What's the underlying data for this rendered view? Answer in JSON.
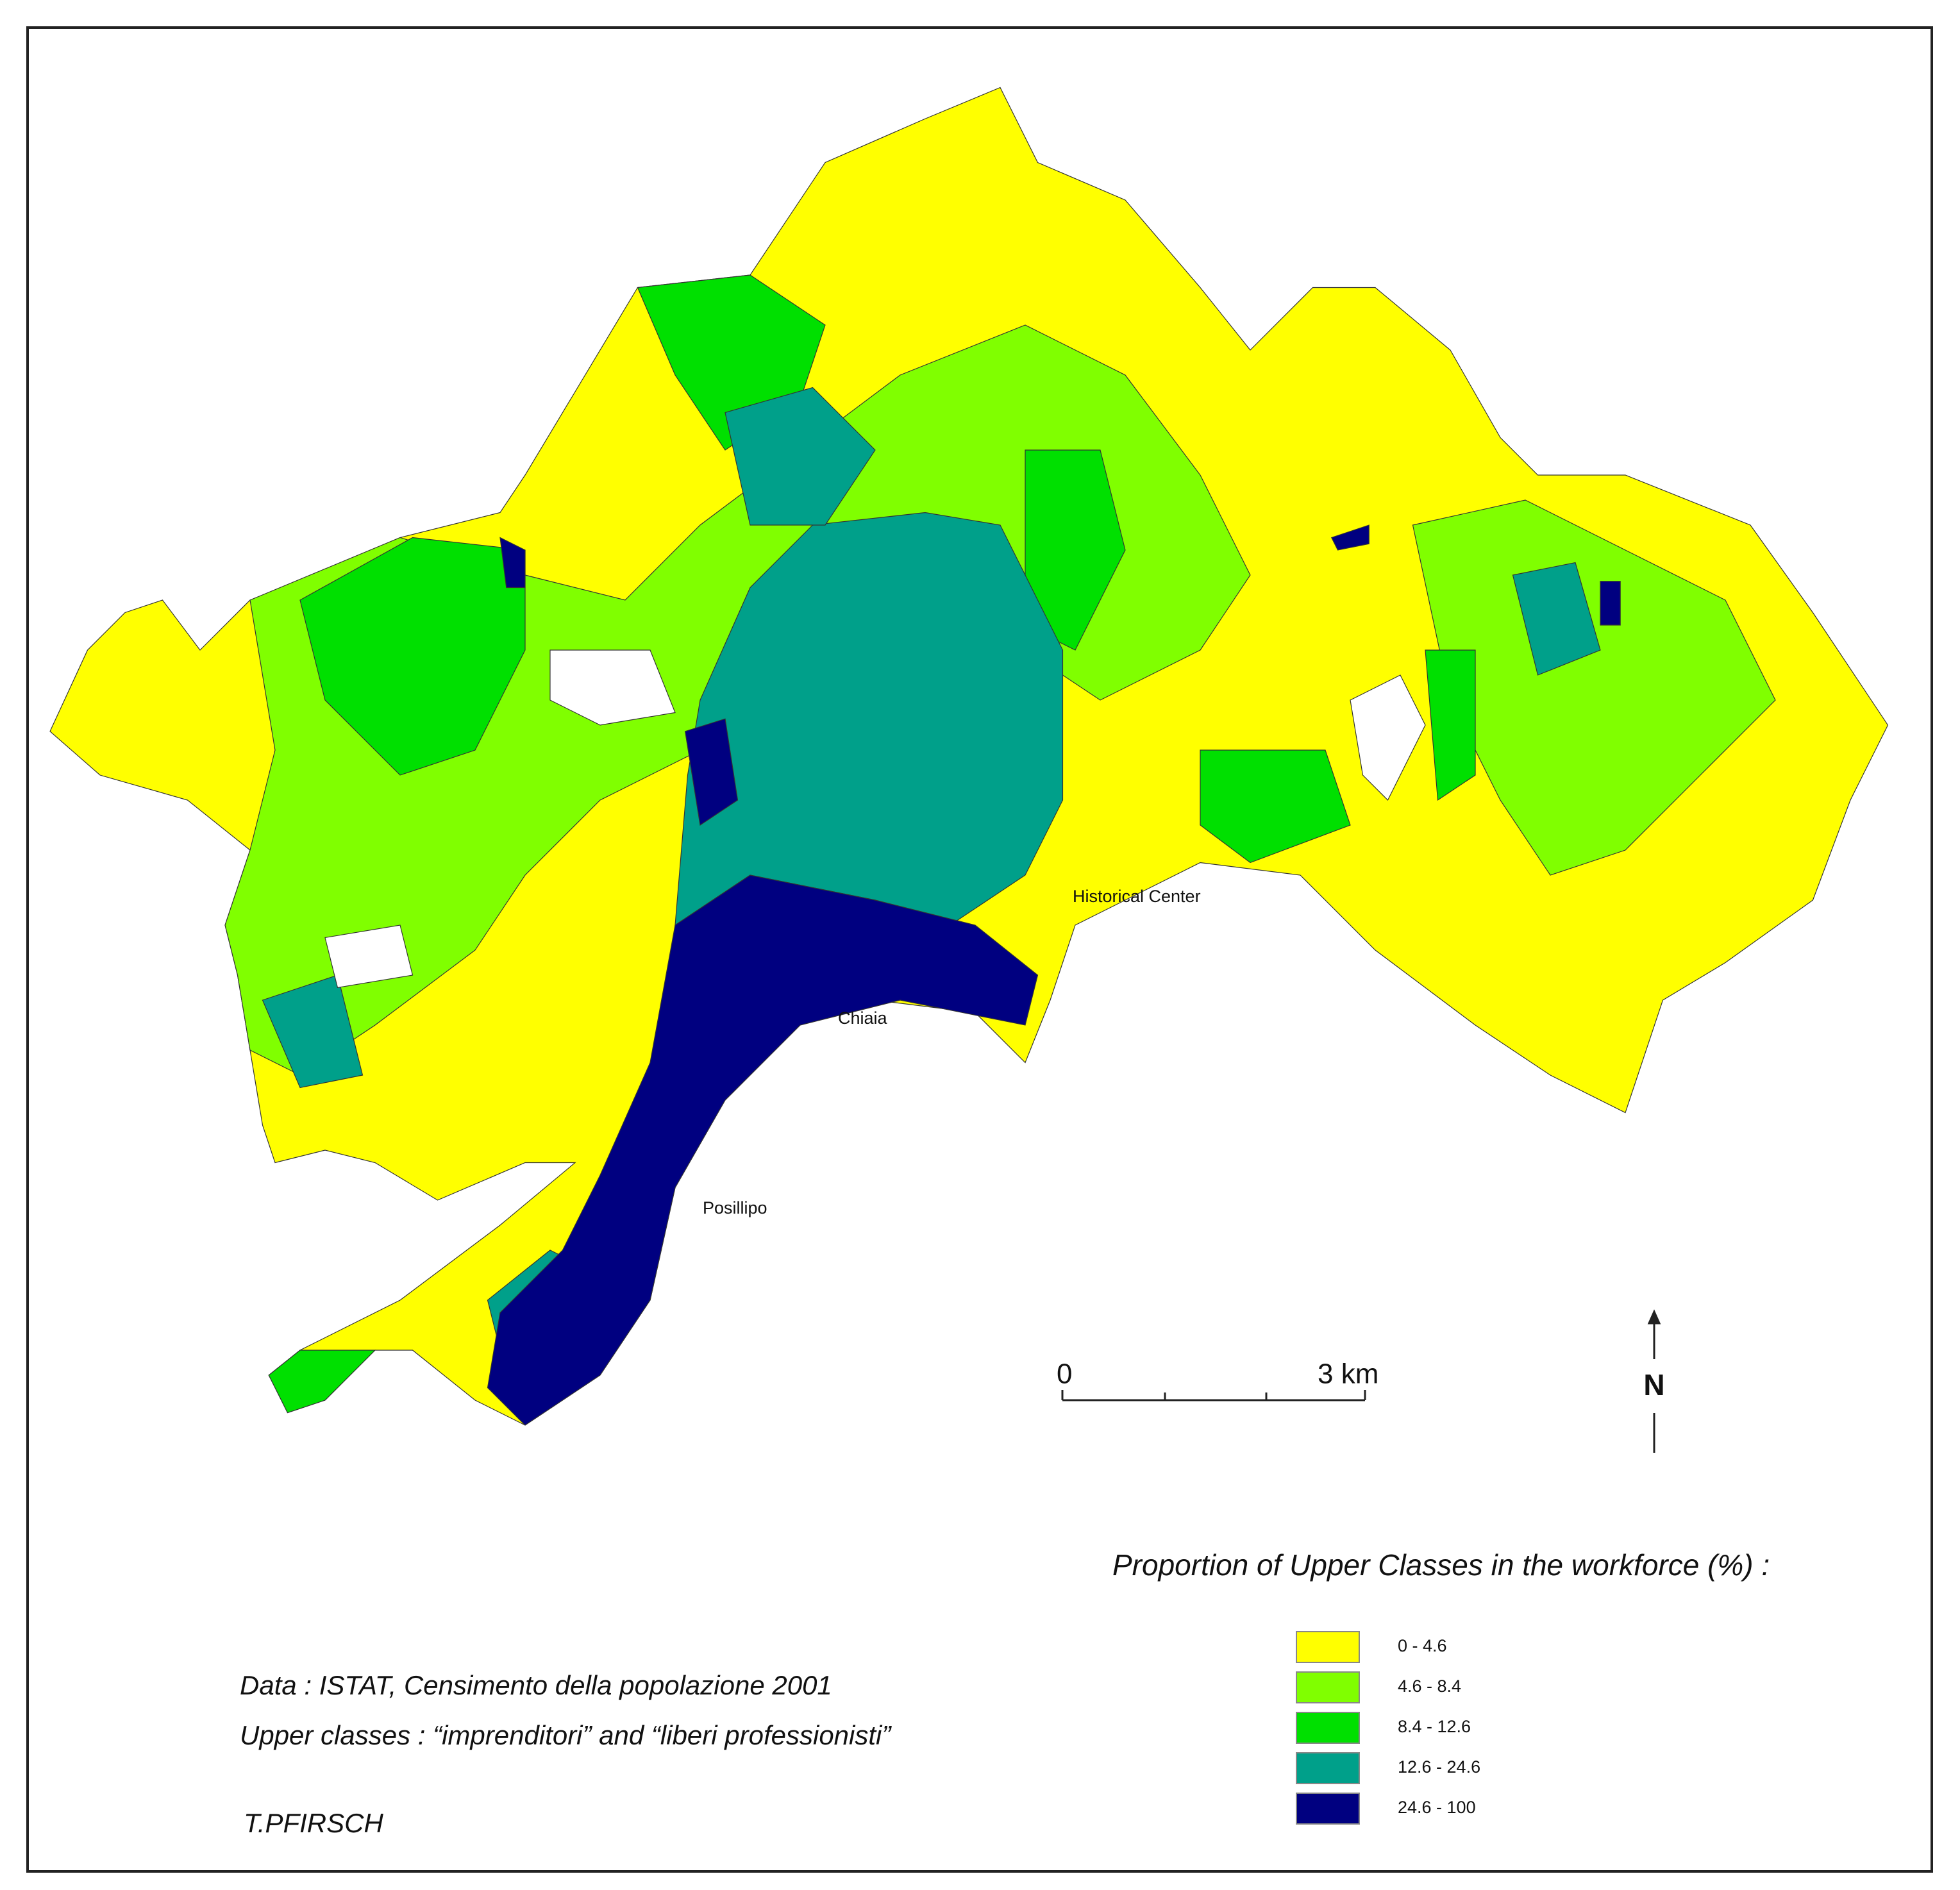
{
  "map": {
    "places": [
      "Historical Center",
      "Chiaia",
      "Posillipo"
    ],
    "scale_bar": [
      "0",
      "3 km"
    ],
    "north": "N",
    "legend": {
      "title": "Proportion of Upper Classes in the workforce (%) :",
      "items": [
        {
          "label": "0 - 4.6",
          "color": "#ffff00"
        },
        {
          "label": "4.6 - 8.4",
          "color": "#80ff00"
        },
        {
          "label": "8.4 - 12.6",
          "color": "#00e000"
        },
        {
          "label": "12.6 - 24.6",
          "color": "#00a08a"
        },
        {
          "label": "24.6 - 100",
          "color": "#000080"
        }
      ]
    },
    "notes": [
      "Data : ISTAT, Censimento della popolazione 2001",
      "Upper classes : “imprenditori” and “liberi professionisti”"
    ],
    "credit": "T.PFIRSCH"
  }
}
